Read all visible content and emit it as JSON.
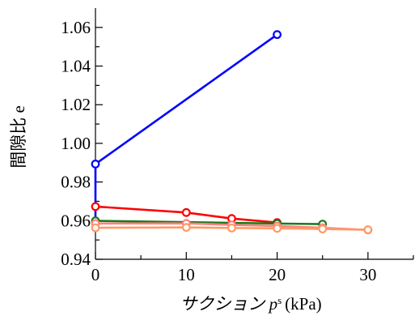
{
  "chart_data": {
    "type": "line",
    "xlabel": "サクション p",
    "xlabel_sup": "s",
    "xlabel_unit": "(kPa)",
    "ylabel": "間隙比 e",
    "xlim": [
      0,
      35
    ],
    "ylim": [
      0.94,
      1.07
    ],
    "x_ticks": [
      0,
      10,
      20,
      30
    ],
    "x_minor_ticks": [
      5,
      15,
      25,
      35
    ],
    "y_ticks": [
      0.94,
      0.96,
      0.98,
      1.0,
      1.02,
      1.04,
      1.06
    ],
    "y_tick_labels": [
      "0.94",
      "0.96",
      "0.98",
      "1.00",
      "1.02",
      "1.04",
      "1.06"
    ],
    "y_minor_ticks": [
      0.95,
      0.97,
      0.99,
      1.01,
      1.03,
      1.05
    ],
    "grid": false,
    "legend": "none",
    "series": [
      {
        "color": "#0000ff",
        "points": [
          [
            0,
            0.9595
          ],
          [
            0,
            0.9893
          ],
          [
            20,
            1.0563
          ]
        ],
        "markers": [
          [
            0,
            0.9893
          ],
          [
            20,
            1.0563
          ]
        ]
      },
      {
        "color": "#ff0000",
        "points": [
          [
            0,
            0.9673
          ],
          [
            10,
            0.9642
          ],
          [
            15,
            0.9611
          ],
          [
            20,
            0.959
          ]
        ],
        "markers": [
          [
            0,
            0.9673
          ],
          [
            10,
            0.9642
          ],
          [
            15,
            0.9611
          ],
          [
            20,
            0.959
          ]
        ]
      },
      {
        "color": "#1a7a1a",
        "points": [
          [
            0,
            0.9599
          ],
          [
            20,
            0.9585
          ],
          [
            25,
            0.9582
          ]
        ],
        "markers": [
          [
            0,
            0.9599
          ],
          [
            20,
            0.9585
          ],
          [
            25,
            0.9582
          ]
        ]
      },
      {
        "color": "#ff8080",
        "points": [
          [
            0,
            0.9585
          ],
          [
            10,
            0.9586
          ],
          [
            15,
            0.9578
          ],
          [
            20,
            0.9572
          ],
          [
            25,
            0.9563
          ],
          [
            30,
            0.9552
          ]
        ],
        "markers": [
          [
            0,
            0.9585
          ],
          [
            10,
            0.9586
          ],
          [
            15,
            0.9578
          ],
          [
            20,
            0.9572
          ],
          [
            25,
            0.9563
          ],
          [
            30,
            0.9552
          ]
        ]
      },
      {
        "color": "#ff9966",
        "points": [
          [
            0,
            0.9563
          ],
          [
            10,
            0.9565
          ],
          [
            15,
            0.9562
          ],
          [
            20,
            0.956
          ],
          [
            25,
            0.9557
          ],
          [
            30,
            0.9553
          ]
        ],
        "markers": [
          [
            0,
            0.9563
          ],
          [
            10,
            0.9565
          ],
          [
            15,
            0.9562
          ],
          [
            20,
            0.956
          ],
          [
            25,
            0.9557
          ],
          [
            30,
            0.9553
          ]
        ]
      }
    ]
  }
}
